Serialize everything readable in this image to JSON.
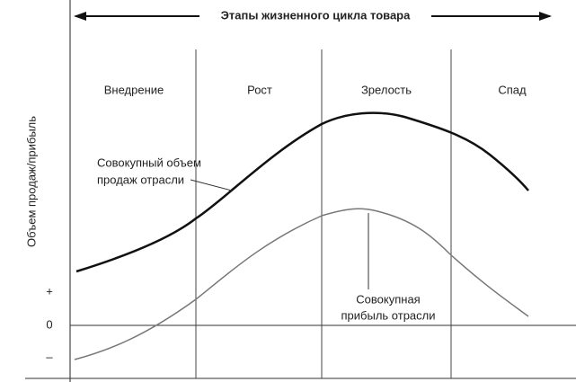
{
  "title": "Этапы жизненного цикла товара",
  "y_axis_label": "Объем продаж/прибыль",
  "stages": [
    "Внедрение",
    "Рост",
    "Зрелость",
    "Спад"
  ],
  "annotations": {
    "sales": [
      "Совокупный объем",
      "продаж отрасли"
    ],
    "profit": [
      "Совокупная",
      "прибыль отрасли"
    ]
  },
  "axis_marks": [
    "+",
    "0",
    "–"
  ]
}
